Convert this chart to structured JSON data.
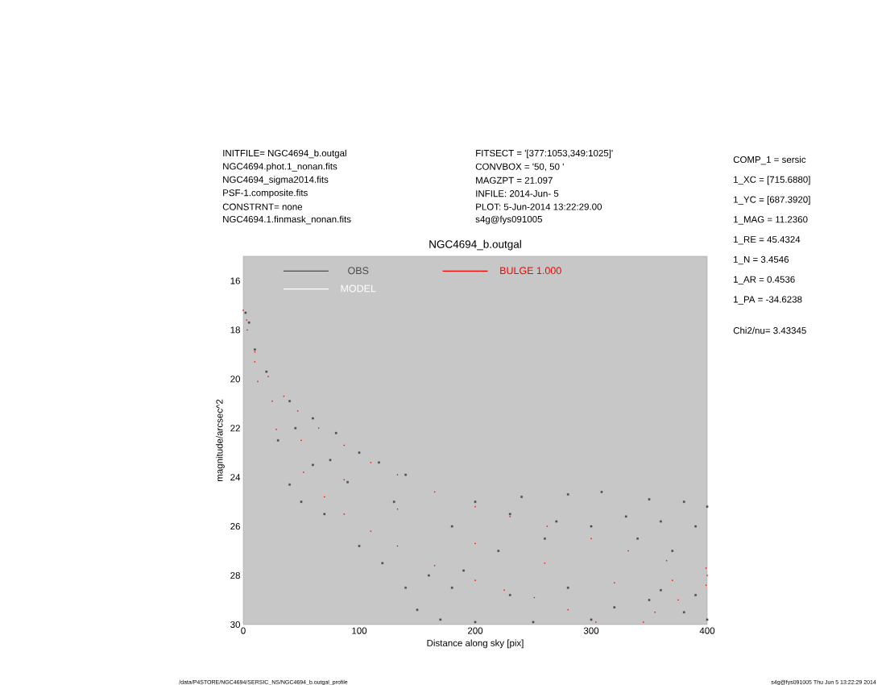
{
  "chart_data": {
    "type": "scatter",
    "title": "NGC4694_b.outgal",
    "xlabel": "Distance along sky [pix]",
    "ylabel": "magnitude/arcsec^2",
    "xlim": [
      0,
      400
    ],
    "xticks": [
      0,
      100,
      200,
      300,
      400
    ],
    "ylim": [
      30,
      15
    ],
    "yticks": [
      16,
      18,
      20,
      22,
      24,
      26,
      28,
      30
    ],
    "marker": "square",
    "legend": "top left",
    "series": [
      {
        "name": "OBS",
        "color": "#4d4d4d",
        "x": [
          2,
          5,
          10,
          20,
          40,
          60,
          80,
          100,
          117,
          140,
          30,
          40,
          50,
          70,
          100,
          120,
          140,
          150,
          170,
          200,
          250,
          300,
          350,
          380,
          400,
          160,
          180,
          220,
          260,
          300,
          340,
          370,
          390,
          200,
          240,
          280,
          309,
          350,
          380,
          400,
          60,
          90,
          130,
          180,
          230,
          270,
          330,
          360,
          190,
          230,
          280,
          320,
          360,
          390,
          45,
          75
        ],
        "values": [
          17.3,
          17.7,
          18.8,
          19.7,
          20.9,
          21.6,
          22.2,
          23.0,
          23.4,
          23.9,
          22.5,
          24.3,
          25.0,
          25.5,
          26.8,
          27.5,
          28.5,
          29.4,
          29.8,
          29.9,
          29.9,
          29.8,
          29.0,
          29.5,
          29.8,
          28.0,
          28.5,
          27.0,
          26.5,
          26.0,
          26.5,
          27.0,
          26.0,
          25.0,
          24.8,
          24.7,
          24.6,
          24.9,
          25.0,
          25.2,
          23.5,
          24.2,
          25.0,
          26.0,
          25.5,
          25.8,
          25.6,
          25.8,
          27.8,
          28.8,
          28.5,
          29.3,
          28.6,
          28.8,
          22.0,
          23.3
        ]
      },
      {
        "name": "BULGE  1.000",
        "color": "#ff0000",
        "x": [
          0,
          3,
          10,
          21.5,
          35,
          47,
          65,
          87,
          110,
          133,
          165,
          200,
          230,
          262,
          300,
          332,
          365,
          399,
          3.5,
          12.5,
          28.5,
          52,
          70,
          87,
          110,
          133,
          165,
          200,
          225,
          251,
          280,
          304,
          345,
          355,
          375,
          399,
          10,
          25,
          50,
          87,
          133,
          200,
          260,
          320,
          370,
          400
        ],
        "values": [
          17.2,
          17.6,
          18.9,
          19.9,
          20.7,
          21.3,
          22.0,
          22.7,
          23.4,
          23.9,
          24.6,
          25.2,
          25.6,
          26.0,
          26.5,
          27.0,
          27.4,
          27.7,
          18.0,
          20.1,
          22.05,
          23.8,
          24.8,
          25.5,
          26.2,
          26.8,
          27.6,
          28.2,
          28.6,
          28.9,
          29.4,
          29.9,
          29.9,
          29.5,
          29.0,
          28.4,
          19.3,
          20.9,
          22.5,
          24.1,
          25.3,
          26.7,
          27.5,
          28.3,
          28.2,
          28.0
        ]
      },
      {
        "name": "MODEL",
        "color": "#ffffff",
        "values": [
          null
        ]
      }
    ],
    "annotations": [
      "INITFILE= NGC4694_b.outgal",
      "NGC4694.phot.1_nonan.fits",
      "NGC4694_sigma2014.fits",
      "PSF-1.composite.fits",
      "CONSTRNT= none",
      "NGC4694.1.finmask_nonan.fits",
      "FITSECT = '[377:1053,349:1025]'",
      "CONVBOX = '50, 50 '",
      "MAGZPT = 21.097",
      "INFILE: 2014-Jun- 5",
      "PLOT: 5-Jun-2014 13:22:29.00",
      "s4g@fys091005",
      "COMP_1 = sersic",
      "1_XC = [715.6880]",
      "1_YC = [687.3920]",
      "1_MAG = 11.2360",
      "1_RE = 45.4324",
      "1_N = 3.4546",
      "1_AR = 0.4536",
      "1_PA = -34.6238",
      "Chi2/nu= 3.43345",
      "/data/P4STORE/NGC4694/SERSIC_NS/NGC4694_b.outgal_profile",
      "s4g@fys091005 Thu Jun 5 13:22:29 2014"
    ]
  }
}
